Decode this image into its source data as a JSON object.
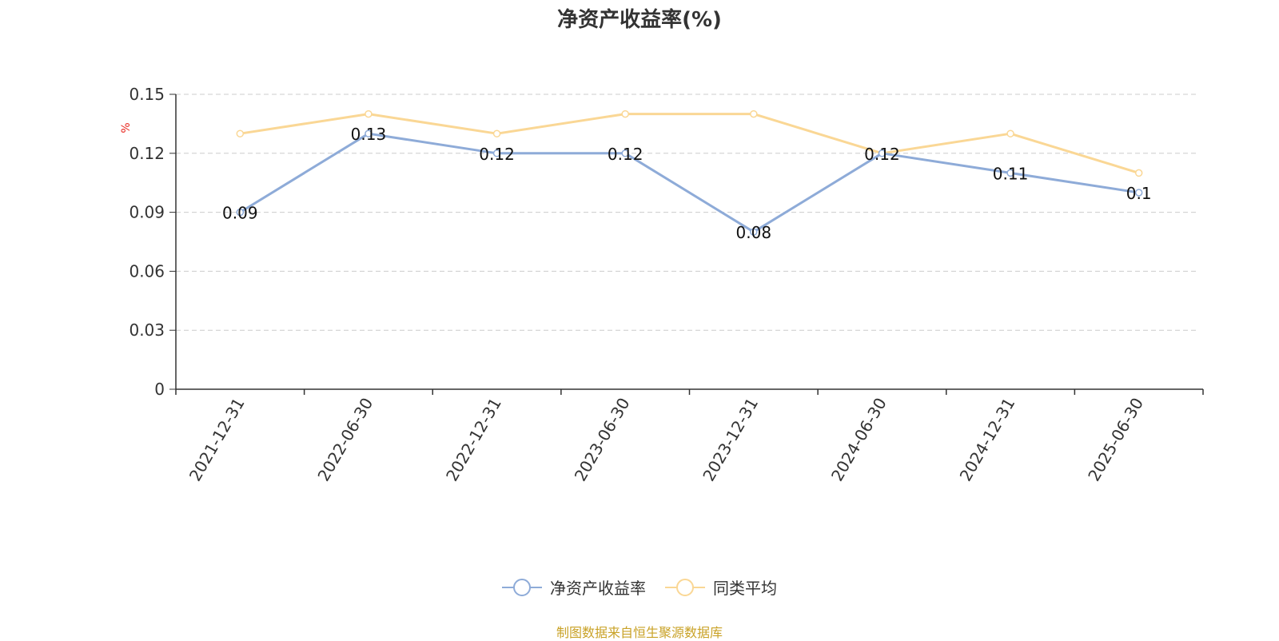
{
  "chart_data": {
    "type": "line",
    "title": "净资产收益率(%)",
    "ylabel": "%",
    "xlabel": "",
    "categories": [
      "2021-12-31",
      "2022-06-30",
      "2022-12-31",
      "2023-06-30",
      "2023-12-31",
      "2024-06-30",
      "2024-12-31",
      "2025-06-30"
    ],
    "series": [
      {
        "name": "净资产收益率",
        "values": [
          0.09,
          0.13,
          0.12,
          0.12,
          0.08,
          0.12,
          0.11,
          0.1
        ],
        "labels": [
          "0.09",
          "0.13",
          "0.12",
          "0.12",
          "0.08",
          "0.12",
          "0.11",
          "0.1"
        ],
        "color": "#8eabd8",
        "show_labels": true
      },
      {
        "name": "同类平均",
        "values": [
          0.13,
          0.14,
          0.13,
          0.14,
          0.14,
          0.12,
          0.13,
          0.11
        ],
        "color": "#fad795",
        "show_labels": false
      }
    ],
    "ylim": [
      0,
      0.15
    ],
    "yticks": [
      "0",
      "0.03",
      "0.06",
      "0.09",
      "0.12",
      "0.15"
    ],
    "grid": true,
    "legend_position": "bottom"
  },
  "source_note": "制图数据来自恒生聚源数据库"
}
